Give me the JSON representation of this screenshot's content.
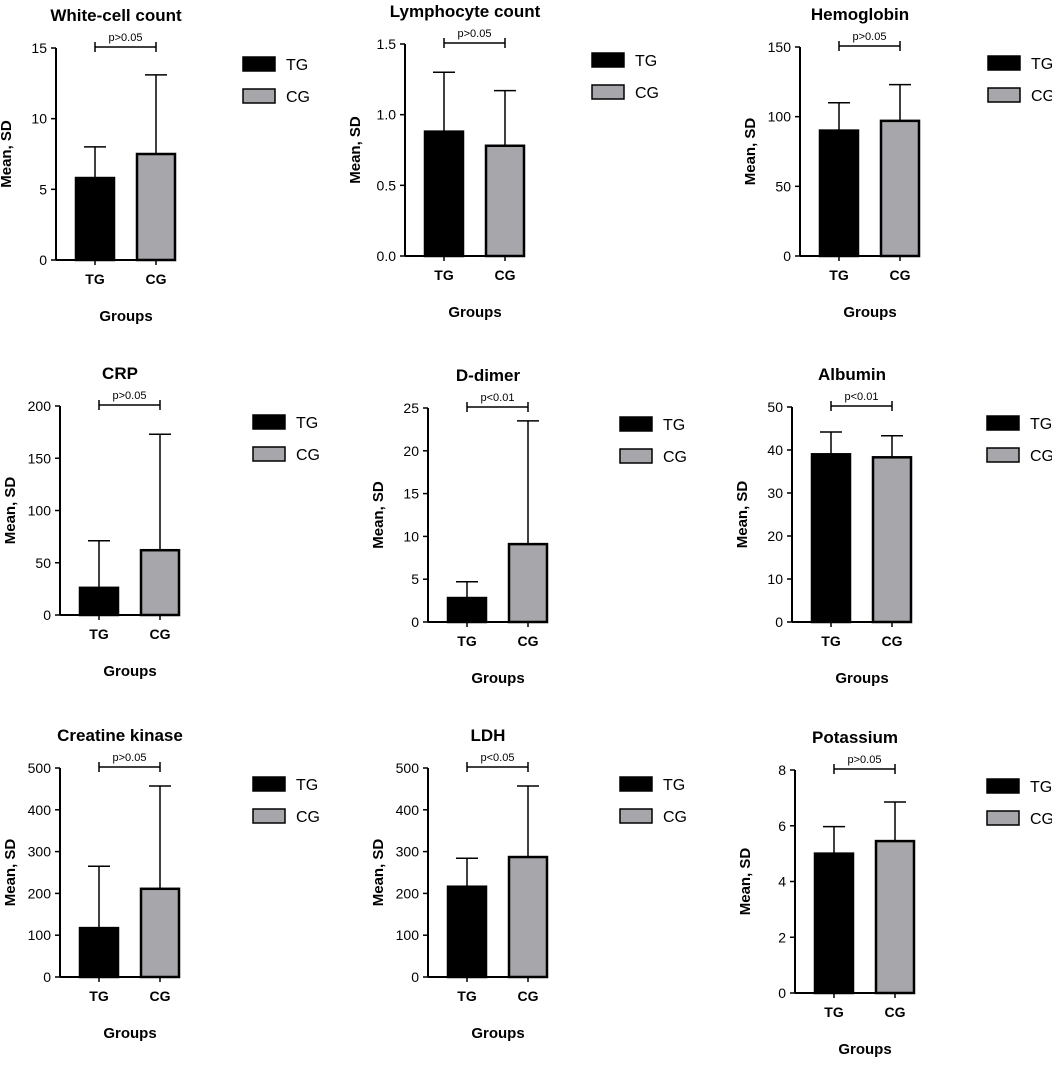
{
  "chart_data": [
    {
      "type": "bar",
      "title": "White-cell count",
      "xlabel": "Groups",
      "ylabel": "Mean, SD",
      "categories": [
        "TG",
        "CG"
      ],
      "values": [
        5.8,
        7.5
      ],
      "errors": [
        2.2,
        5.6
      ],
      "ylim": [
        0,
        15
      ],
      "yticks": [
        "0",
        "5",
        "10",
        "15"
      ],
      "annotation": "p>0.05",
      "legend": [
        "TG",
        "CG"
      ]
    },
    {
      "type": "bar",
      "title": "Lymphocyte count",
      "xlabel": "Groups",
      "ylabel": "Mean, SD",
      "categories": [
        "TG",
        "CG"
      ],
      "values": [
        0.88,
        0.78
      ],
      "errors": [
        0.42,
        0.39
      ],
      "ylim": [
        0,
        1.5
      ],
      "yticks": [
        "0.0",
        "0.5",
        "1.0",
        "1.5"
      ],
      "annotation": "p>0.05",
      "legend": [
        "TG",
        "CG"
      ]
    },
    {
      "type": "bar",
      "title": "Hemoglobin",
      "xlabel": "Groups",
      "ylabel": "Mean, SD",
      "categories": [
        "TG",
        "CG"
      ],
      "values": [
        90,
        97
      ],
      "errors": [
        20,
        26
      ],
      "ylim": [
        0,
        150
      ],
      "yticks": [
        "0",
        "50",
        "100",
        "150"
      ],
      "annotation": "p>0.05",
      "legend": [
        "TG",
        "CG"
      ]
    },
    {
      "type": "bar",
      "title": "CRP",
      "xlabel": "Groups",
      "ylabel": "Mean, SD",
      "categories": [
        "TG",
        "CG"
      ],
      "values": [
        26,
        62
      ],
      "errors": [
        45,
        111
      ],
      "ylim": [
        0,
        200
      ],
      "yticks": [
        "0",
        "50",
        "100",
        "150",
        "200"
      ],
      "annotation": "p>0.05",
      "legend": [
        "TG",
        "CG"
      ]
    },
    {
      "type": "bar",
      "title": "D-dimer",
      "xlabel": "Groups",
      "ylabel": "Mean, SD",
      "categories": [
        "TG",
        "CG"
      ],
      "values": [
        2.8,
        9.1
      ],
      "errors": [
        1.9,
        14.4
      ],
      "ylim": [
        0,
        25
      ],
      "yticks": [
        "0",
        "5",
        "10",
        "15",
        "20",
        "25"
      ],
      "annotation": "p<0.01",
      "legend": [
        "TG",
        "CG"
      ]
    },
    {
      "type": "bar",
      "title": "Albumin",
      "xlabel": "Groups",
      "ylabel": "Mean, SD",
      "categories": [
        "TG",
        "CG"
      ],
      "values": [
        39,
        38.3
      ],
      "errors": [
        5.2,
        5.0
      ],
      "ylim": [
        0,
        50
      ],
      "yticks": [
        "0",
        "10",
        "20",
        "30",
        "40",
        "50"
      ],
      "annotation": "p<0.01",
      "legend": [
        "TG",
        "CG"
      ]
    },
    {
      "type": "bar",
      "title": "Creatine kinase",
      "xlabel": "Groups",
      "ylabel": "Mean, SD",
      "categories": [
        "TG",
        "CG"
      ],
      "values": [
        117,
        211
      ],
      "errors": [
        148,
        246
      ],
      "ylim": [
        0,
        500
      ],
      "yticks": [
        "0",
        "100",
        "200",
        "300",
        "400",
        "500"
      ],
      "annotation": "p>0.05",
      "legend": [
        "TG",
        "CG"
      ]
    },
    {
      "type": "bar",
      "title": "LDH",
      "xlabel": "Groups",
      "ylabel": "Mean, SD",
      "categories": [
        "TG",
        "CG"
      ],
      "values": [
        216,
        287
      ],
      "errors": [
        68,
        170
      ],
      "ylim": [
        0,
        500
      ],
      "yticks": [
        "0",
        "100",
        "200",
        "300",
        "400",
        "500"
      ],
      "annotation": "p<0.05",
      "legend": [
        "TG",
        "CG"
      ]
    },
    {
      "type": "bar",
      "title": "Potassium",
      "xlabel": "Groups",
      "ylabel": "Mean, SD",
      "categories": [
        "TG",
        "CG"
      ],
      "values": [
        5.0,
        5.45
      ],
      "errors": [
        0.97,
        1.4
      ],
      "ylim": [
        0,
        8
      ],
      "yticks": [
        "0",
        "2",
        "4",
        "6",
        "8"
      ],
      "annotation": "p>0.05",
      "legend": [
        "TG",
        "CG"
      ]
    }
  ],
  "colors": {
    "tg": "#000000",
    "cg": "#a6a6ab",
    "axis": "#000000"
  }
}
